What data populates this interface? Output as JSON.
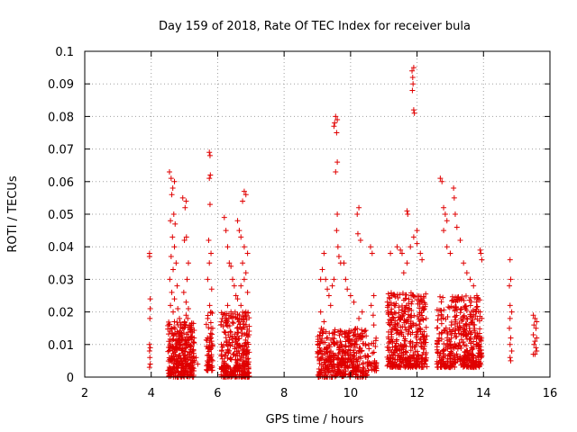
{
  "chart_data": {
    "type": "scatter",
    "title": "Day 159 of 2018, Rate Of TEC Index for receiver bula",
    "xlabel": "GPS time / hours",
    "ylabel": "ROTI / TECUs",
    "xlim": [
      2,
      16
    ],
    "ylim": [
      0,
      0.1
    ],
    "xticks": [
      "2",
      "4",
      "6",
      "8",
      "10",
      "12",
      "14",
      "16"
    ],
    "yticks": [
      "0",
      "0.01",
      "0.02",
      "0.03",
      "0.04",
      "0.05",
      "0.06",
      "0.07",
      "0.08",
      "0.09",
      "0.1"
    ],
    "grid": true,
    "marker": "+",
    "series": [
      {
        "name": "ROTI",
        "color": "#e00000",
        "points": [
          [
            3.95,
            0.038
          ],
          [
            3.95,
            0.037
          ],
          [
            3.97,
            0.024
          ],
          [
            3.97,
            0.021
          ],
          [
            3.96,
            0.018
          ],
          [
            3.95,
            0.01
          ],
          [
            3.97,
            0.009
          ],
          [
            3.95,
            0.008
          ],
          [
            3.96,
            0.006
          ],
          [
            3.97,
            0.004
          ],
          [
            3.95,
            0.003
          ],
          [
            4.55,
            0.063
          ],
          [
            4.6,
            0.061
          ],
          [
            4.65,
            0.058
          ],
          [
            4.7,
            0.06
          ],
          [
            4.62,
            0.056
          ],
          [
            4.68,
            0.05
          ],
          [
            4.58,
            0.048
          ],
          [
            4.72,
            0.047
          ],
          [
            4.64,
            0.043
          ],
          [
            4.7,
            0.04
          ],
          [
            4.6,
            0.037
          ],
          [
            4.75,
            0.035
          ],
          [
            4.66,
            0.033
          ],
          [
            4.56,
            0.03
          ],
          [
            4.78,
            0.028
          ],
          [
            4.62,
            0.026
          ],
          [
            4.7,
            0.024
          ],
          [
            4.58,
            0.022
          ],
          [
            4.8,
            0.021
          ],
          [
            4.66,
            0.02
          ],
          [
            4.85,
            0.018
          ],
          [
            4.9,
            0.016
          ],
          [
            4.95,
            0.015
          ],
          [
            5.0,
            0.017
          ],
          [
            5.05,
            0.019
          ],
          [
            5.1,
            0.018
          ],
          [
            5.15,
            0.016
          ],
          [
            5.2,
            0.014
          ],
          [
            5.12,
            0.021
          ],
          [
            5.05,
            0.023
          ],
          [
            4.98,
            0.026
          ],
          [
            5.08,
            0.03
          ],
          [
            5.12,
            0.035
          ],
          [
            5.0,
            0.042
          ],
          [
            5.06,
            0.043
          ],
          [
            5.02,
            0.052
          ],
          [
            5.05,
            0.054
          ],
          [
            4.95,
            0.055
          ],
          [
            5.3,
            0.005
          ],
          [
            5.35,
            0.006
          ],
          [
            5.4,
            0.004
          ],
          [
            5.25,
            0.003
          ],
          [
            5.75,
            0.069
          ],
          [
            5.77,
            0.068
          ],
          [
            5.75,
            0.061
          ],
          [
            5.78,
            0.062
          ],
          [
            5.77,
            0.053
          ],
          [
            5.73,
            0.042
          ],
          [
            5.8,
            0.038
          ],
          [
            5.75,
            0.035
          ],
          [
            5.7,
            0.03
          ],
          [
            5.82,
            0.027
          ],
          [
            5.76,
            0.022
          ],
          [
            5.7,
            0.018
          ],
          [
            5.85,
            0.015
          ],
          [
            5.8,
            0.012
          ],
          [
            5.72,
            0.009
          ],
          [
            5.78,
            0.006
          ],
          [
            5.74,
            0.004
          ],
          [
            5.8,
            0.003
          ],
          [
            5.85,
            0.005
          ],
          [
            6.2,
            0.049
          ],
          [
            6.25,
            0.045
          ],
          [
            6.3,
            0.04
          ],
          [
            6.35,
            0.035
          ],
          [
            6.4,
            0.034
          ],
          [
            6.45,
            0.03
          ],
          [
            6.5,
            0.028
          ],
          [
            6.55,
            0.025
          ],
          [
            6.3,
            0.022
          ],
          [
            6.4,
            0.02
          ],
          [
            6.6,
            0.018
          ],
          [
            6.7,
            0.022
          ],
          [
            6.8,
            0.057
          ],
          [
            6.85,
            0.056
          ],
          [
            6.75,
            0.054
          ],
          [
            6.6,
            0.048
          ],
          [
            6.65,
            0.045
          ],
          [
            6.7,
            0.043
          ],
          [
            6.8,
            0.04
          ],
          [
            6.9,
            0.038
          ],
          [
            6.75,
            0.035
          ],
          [
            6.85,
            0.032
          ],
          [
            6.8,
            0.03
          ],
          [
            6.7,
            0.028
          ],
          [
            6.9,
            0.026
          ],
          [
            6.6,
            0.024
          ],
          [
            6.85,
            0.02
          ],
          [
            9.5,
            0.077
          ],
          [
            9.55,
            0.08
          ],
          [
            9.6,
            0.079
          ],
          [
            9.52,
            0.078
          ],
          [
            9.58,
            0.075
          ],
          [
            9.6,
            0.066
          ],
          [
            9.55,
            0.063
          ],
          [
            9.6,
            0.05
          ],
          [
            9.58,
            0.045
          ],
          [
            9.62,
            0.04
          ],
          [
            9.65,
            0.037
          ],
          [
            9.7,
            0.035
          ],
          [
            9.5,
            0.03
          ],
          [
            9.45,
            0.028
          ],
          [
            9.1,
            0.03
          ],
          [
            9.15,
            0.033
          ],
          [
            9.2,
            0.038
          ],
          [
            9.25,
            0.03
          ],
          [
            9.3,
            0.027
          ],
          [
            9.35,
            0.025
          ],
          [
            9.4,
            0.022
          ],
          [
            9.1,
            0.02
          ],
          [
            9.2,
            0.017
          ],
          [
            9.8,
            0.035
          ],
          [
            9.85,
            0.03
          ],
          [
            9.9,
            0.027
          ],
          [
            10.0,
            0.025
          ],
          [
            10.1,
            0.023
          ],
          [
            10.2,
            0.05
          ],
          [
            10.25,
            0.052
          ],
          [
            10.22,
            0.044
          ],
          [
            10.3,
            0.042
          ],
          [
            10.35,
            0.02
          ],
          [
            10.25,
            0.018
          ],
          [
            10.6,
            0.04
          ],
          [
            10.65,
            0.038
          ],
          [
            10.7,
            0.025
          ],
          [
            10.62,
            0.022
          ],
          [
            10.68,
            0.019
          ],
          [
            10.7,
            0.016
          ],
          [
            11.2,
            0.038
          ],
          [
            11.4,
            0.04
          ],
          [
            11.5,
            0.039
          ],
          [
            11.55,
            0.038
          ],
          [
            11.6,
            0.032
          ],
          [
            11.7,
            0.035
          ],
          [
            11.8,
            0.04
          ],
          [
            11.9,
            0.043
          ],
          [
            12.0,
            0.041
          ],
          [
            12.1,
            0.038
          ],
          [
            12.15,
            0.036
          ],
          [
            12.0,
            0.045
          ],
          [
            11.85,
            0.094
          ],
          [
            11.9,
            0.095
          ],
          [
            11.87,
            0.092
          ],
          [
            11.88,
            0.09
          ],
          [
            11.86,
            0.088
          ],
          [
            11.9,
            0.082
          ],
          [
            11.92,
            0.081
          ],
          [
            11.7,
            0.051
          ],
          [
            11.72,
            0.05
          ],
          [
            12.7,
            0.061
          ],
          [
            12.75,
            0.06
          ],
          [
            12.8,
            0.052
          ],
          [
            12.85,
            0.05
          ],
          [
            12.9,
            0.048
          ],
          [
            13.1,
            0.058
          ],
          [
            13.12,
            0.055
          ],
          [
            13.15,
            0.05
          ],
          [
            13.2,
            0.046
          ],
          [
            13.3,
            0.042
          ],
          [
            13.4,
            0.035
          ],
          [
            13.5,
            0.032
          ],
          [
            13.6,
            0.03
          ],
          [
            13.7,
            0.028
          ],
          [
            13.8,
            0.025
          ],
          [
            12.8,
            0.045
          ],
          [
            12.9,
            0.04
          ],
          [
            13.0,
            0.038
          ],
          [
            13.9,
            0.039
          ],
          [
            13.92,
            0.038
          ],
          [
            13.95,
            0.036
          ],
          [
            13.9,
            0.02
          ],
          [
            13.95,
            0.018
          ],
          [
            14.8,
            0.036
          ],
          [
            14.82,
            0.03
          ],
          [
            14.78,
            0.028
          ],
          [
            14.8,
            0.022
          ],
          [
            14.85,
            0.02
          ],
          [
            14.8,
            0.018
          ],
          [
            14.78,
            0.015
          ],
          [
            14.82,
            0.012
          ],
          [
            14.8,
            0.01
          ],
          [
            14.85,
            0.008
          ],
          [
            14.8,
            0.006
          ],
          [
            14.82,
            0.005
          ],
          [
            15.5,
            0.019
          ],
          [
            15.55,
            0.018
          ],
          [
            15.6,
            0.017
          ],
          [
            15.52,
            0.016
          ],
          [
            15.58,
            0.015
          ],
          [
            15.5,
            0.013
          ],
          [
            15.6,
            0.012
          ],
          [
            15.55,
            0.011
          ],
          [
            15.52,
            0.01
          ],
          [
            15.58,
            0.009
          ],
          [
            15.6,
            0.008
          ],
          [
            15.5,
            0.007
          ],
          [
            15.55,
            0.007
          ]
        ],
        "dense_clusters": [
          {
            "x_range": [
              4.5,
              5.3
            ],
            "y_range": [
              0.0,
              0.017
            ],
            "count": 320
          },
          {
            "x_range": [
              5.65,
              5.85
            ],
            "y_range": [
              0.002,
              0.02
            ],
            "count": 60
          },
          {
            "x_range": [
              6.1,
              6.95
            ],
            "y_range": [
              0.0,
              0.02
            ],
            "count": 320
          },
          {
            "x_range": [
              9.0,
              10.5
            ],
            "y_range": [
              0.0,
              0.015
            ],
            "count": 420
          },
          {
            "x_range": [
              10.5,
              10.8
            ],
            "y_range": [
              0.002,
              0.012
            ],
            "count": 40
          },
          {
            "x_range": [
              11.1,
              12.3
            ],
            "y_range": [
              0.003,
              0.026
            ],
            "count": 420
          },
          {
            "x_range": [
              12.6,
              13.9
            ],
            "y_range": [
              0.003,
              0.025
            ],
            "count": 420
          },
          {
            "x_range": [
              13.85,
              13.95
            ],
            "y_range": [
              0.004,
              0.012
            ],
            "count": 25
          }
        ]
      }
    ]
  }
}
